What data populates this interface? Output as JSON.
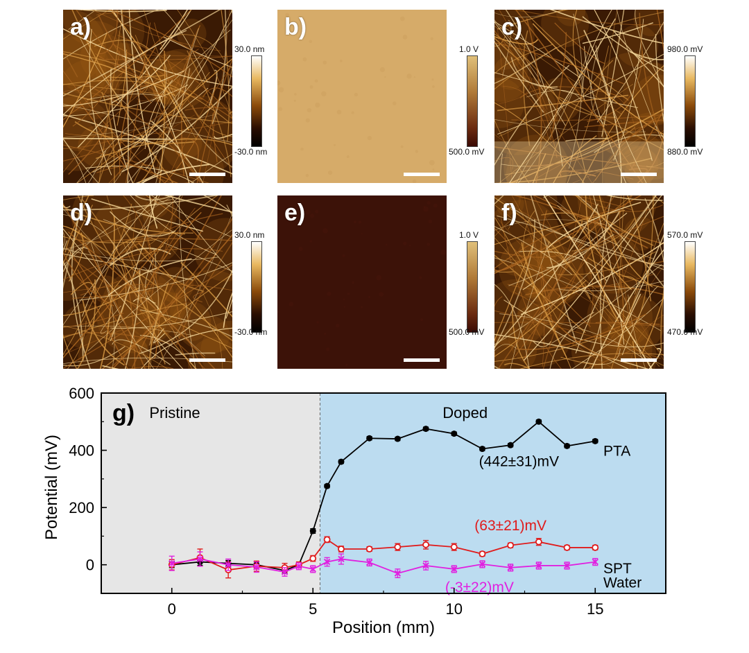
{
  "panels": {
    "a": {
      "label": "a)",
      "cbar_max": "30.0 nm",
      "cbar_min": "-30.0 nm"
    },
    "b": {
      "label": "b)",
      "cbar_max": "1.0 V",
      "cbar_min": "500.0 mV"
    },
    "c": {
      "label": "c)",
      "cbar_max": "980.0 mV",
      "cbar_min": "880.0 mV"
    },
    "d": {
      "label": "d)",
      "cbar_max": "30.0 nm",
      "cbar_min": "-30.0 nm"
    },
    "e": {
      "label": "e)",
      "cbar_max": "1.0 V",
      "cbar_min": "500.0 mV"
    },
    "f": {
      "label": "f)",
      "cbar_max": "570.0 mV",
      "cbar_min": "470.0 mV"
    }
  },
  "colors": {
    "afm_dark": "#3a1a04",
    "afm_mid": "#9a5a14",
    "afm_light": "#f5d79a",
    "flat_b": "#d6ab69",
    "flat_e": "#3c1208",
    "pristine_bg": "#e6e6e6",
    "doped_bg": "#bcdcf0",
    "pta": "#000000",
    "spt": "#e01b1b",
    "water": "#e020e0"
  },
  "chart_data": {
    "type": "line",
    "panel_label": "g)",
    "title": "",
    "xlabel": "Position (mm)",
    "ylabel": "Potential (mV)",
    "xlim": [
      -2.5,
      17.5
    ],
    "ylim": [
      -100,
      600
    ],
    "xticks": [
      0,
      5,
      10,
      15
    ],
    "yticks": [
      0,
      200,
      400,
      600
    ],
    "regions": [
      {
        "label": "Pristine",
        "from": -2.5,
        "to": 5.25
      },
      {
        "label": "Doped",
        "from": 5.25,
        "to": 17.5
      }
    ],
    "boundary": 5.25,
    "series": [
      {
        "name": "PTA",
        "marker": "filled-circle",
        "x": [
          0,
          1,
          2,
          3,
          4,
          4.5,
          5,
          5.5,
          6,
          7,
          8,
          9,
          10,
          11,
          12,
          13,
          14,
          15
        ],
        "y": [
          0,
          10,
          5,
          0,
          -20,
          0,
          118,
          275,
          360,
          442,
          440,
          475,
          458,
          405,
          418,
          500,
          415,
          432
        ],
        "err": [
          10,
          12,
          10,
          10,
          10,
          8,
          8,
          6,
          6,
          6,
          6,
          6,
          6,
          6,
          6,
          6,
          6,
          6
        ],
        "annotation": "(442±31)mV"
      },
      {
        "name": "SPT",
        "marker": "open-circle",
        "x": [
          0,
          1,
          2,
          3,
          4,
          4.5,
          5,
          5.5,
          6,
          7,
          8,
          9,
          10,
          11,
          12,
          13,
          14,
          15
        ],
        "y": [
          0,
          25,
          -18,
          -5,
          -10,
          0,
          22,
          88,
          55,
          55,
          62,
          70,
          62,
          38,
          68,
          80,
          60,
          60
        ],
        "err": [
          18,
          30,
          28,
          18,
          15,
          10,
          10,
          10,
          10,
          8,
          12,
          15,
          12,
          8,
          8,
          12,
          8,
          8
        ],
        "annotation": "(63±21)mV"
      },
      {
        "name": "Water",
        "marker": "x",
        "x": [
          0,
          1,
          2,
          3,
          4,
          4.5,
          5,
          5.5,
          6,
          7,
          8,
          9,
          10,
          11,
          12,
          13,
          14,
          15
        ],
        "y": [
          5,
          20,
          0,
          -8,
          -25,
          -5,
          -15,
          10,
          20,
          8,
          -30,
          -3,
          -15,
          2,
          -10,
          -3,
          -3,
          10
        ],
        "err": [
          25,
          25,
          20,
          18,
          15,
          12,
          12,
          15,
          18,
          12,
          15,
          15,
          12,
          12,
          12,
          12,
          12,
          12
        ],
        "annotation": "(-3±22)mV"
      }
    ]
  }
}
